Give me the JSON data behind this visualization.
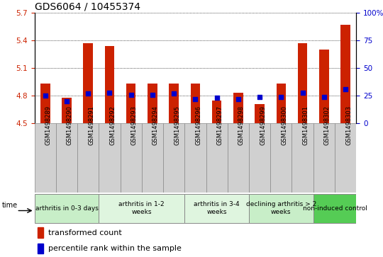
{
  "title": "GDS6064 / 10455374",
  "samples": [
    "GSM1498289",
    "GSM1498290",
    "GSM1498291",
    "GSM1498292",
    "GSM1498293",
    "GSM1498294",
    "GSM1498295",
    "GSM1498296",
    "GSM1498297",
    "GSM1498298",
    "GSM1498299",
    "GSM1498300",
    "GSM1498301",
    "GSM1498302",
    "GSM1498303"
  ],
  "transformed_counts": [
    4.93,
    4.78,
    5.37,
    5.34,
    4.93,
    4.93,
    4.93,
    4.93,
    4.75,
    4.83,
    4.71,
    4.93,
    5.37,
    5.3,
    5.57
  ],
  "percentile_ranks": [
    25,
    20,
    27,
    28,
    26,
    26,
    27,
    22,
    23,
    22,
    24,
    24,
    28,
    24,
    31
  ],
  "ylim_left": [
    4.5,
    5.7
  ],
  "ylim_right": [
    0,
    100
  ],
  "yticks_left": [
    4.5,
    4.8,
    5.1,
    5.4,
    5.7
  ],
  "yticks_right": [
    0,
    25,
    50,
    75,
    100
  ],
  "groups": [
    {
      "label": "arthritis in 0-3 days",
      "indices": [
        0,
        1,
        2
      ],
      "color": "#c8eec8"
    },
    {
      "label": "arthritis in 1-2\nweeks",
      "indices": [
        3,
        4,
        5,
        6
      ],
      "color": "#dff5df"
    },
    {
      "label": "arthritis in 3-4\nweeks",
      "indices": [
        7,
        8,
        9
      ],
      "color": "#dff5df"
    },
    {
      "label": "declining arthritis > 2\nweeks",
      "indices": [
        10,
        11,
        12
      ],
      "color": "#c8eec8"
    },
    {
      "label": "non-induced control",
      "indices": [
        13,
        14
      ],
      "color": "#55cc55"
    }
  ],
  "bar_color": "#cc2200",
  "dot_color": "#0000cc",
  "bar_width": 0.45,
  "sample_box_color": "#d0d0d0",
  "sample_box_edge": "#888888",
  "title_fontsize": 10,
  "axis_fontsize": 7.5,
  "legend_fontsize": 8,
  "group_fontsize": 6.5,
  "sample_fontsize": 6.0
}
